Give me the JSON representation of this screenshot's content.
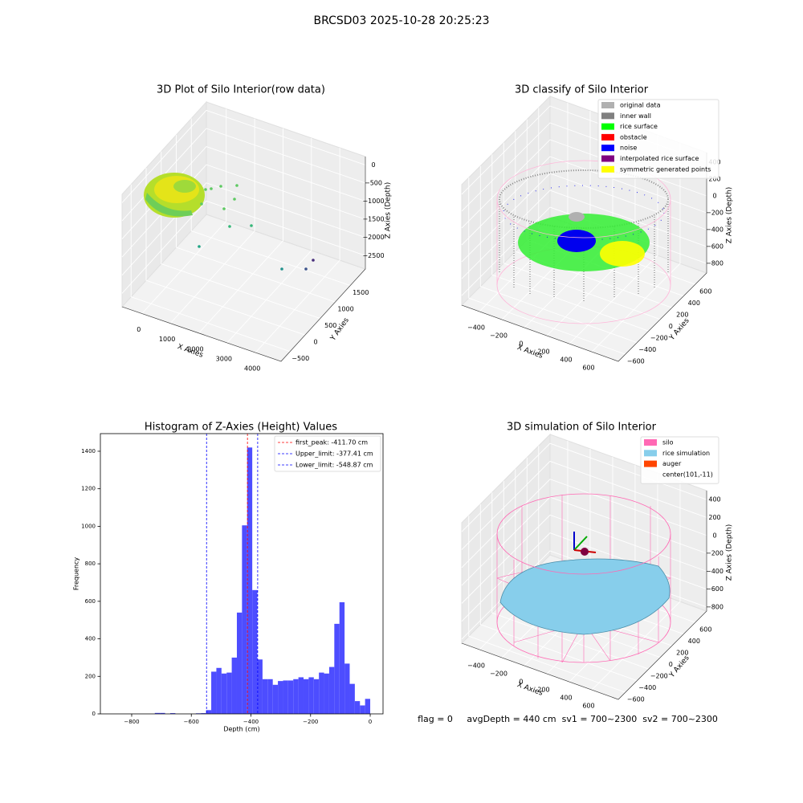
{
  "title": "BRCSD03 2025-10-28 20:25:23",
  "annotation": "flag = 0     avgDepth = 440 cm  sv1 = 700~2300  sv2 = 700~2300",
  "chart_data": [
    {
      "type": "scatter3d",
      "title": "3D Plot of Silo Interior(row data)",
      "xlabel": "X Axies",
      "ylabel": "Y Axies",
      "zlabel": "Z Axies (Depth)",
      "xlim": [
        -700,
        4900
      ],
      "ylim": [
        -800,
        2000
      ],
      "zlim": [
        -2870,
        230
      ],
      "xticks": [
        0,
        1000,
        2000,
        3000,
        4000
      ],
      "yticks": [
        {
          "value": -500,
          "label": "−500"
        },
        0,
        500,
        1000,
        1500
      ],
      "zticks": [
        0,
        {
          "value": -500,
          "label": "−500"
        },
        {
          "value": -1000,
          "label": "−1000"
        },
        {
          "value": -1500,
          "label": "−1500"
        },
        {
          "value": -2000,
          "label": "−2000"
        },
        {
          "value": -2500,
          "label": "−2500"
        }
      ],
      "grid": true
    },
    {
      "type": "scatter3d",
      "title": "3D classify of Silo Interior",
      "xlabel": "X Axies",
      "ylabel": "Y Axies",
      "zlabel": "Z Axies (Depth)",
      "xlim": [
        -557,
        836
      ],
      "ylim": [
        -721,
        796
      ],
      "zlim": [
        -914,
        514
      ],
      "xticks": [
        {
          "value": -400,
          "label": "−400"
        },
        {
          "value": -200,
          "label": "−200"
        },
        0,
        200,
        400,
        600
      ],
      "yticks": [
        {
          "value": -600,
          "label": "−600"
        },
        {
          "value": -400,
          "label": "−400"
        },
        {
          "value": -200,
          "label": "−200"
        },
        0,
        200,
        400,
        600
      ],
      "zticks": [
        {
          "value": -800,
          "label": "−800"
        },
        {
          "value": -600,
          "label": "−600"
        },
        {
          "value": -400,
          "label": "−400"
        },
        {
          "value": -200,
          "label": "−200"
        },
        0,
        200,
        400
      ],
      "grid": true,
      "legend_loc": "upper right",
      "legend": [
        {
          "name": "original data",
          "color": "#b0b0b0"
        },
        {
          "name": "inner wall",
          "color": "#808080"
        },
        {
          "name": "rice surface",
          "color": "#00ff00"
        },
        {
          "name": "obstacle",
          "color": "#ff0000"
        },
        {
          "name": "noise",
          "color": "#0000ff"
        },
        {
          "name": "interpolated rice surface",
          "color": "#800080"
        },
        {
          "name": "symmetric generated points",
          "color": "#ffff00"
        }
      ]
    },
    {
      "type": "histogram",
      "title": "Histogram of Z-Axies (Height) Values",
      "xlabel": "Depth (cm)",
      "ylabel": "Frequency",
      "color": "#4d4dff",
      "xlim": [
        -905,
        43
      ],
      "ylim": [
        0,
        1494
      ],
      "xticks": [
        {
          "value": -800,
          "label": "−800"
        },
        {
          "value": -600,
          "label": "−600"
        },
        {
          "value": -400,
          "label": "−400"
        },
        {
          "value": -200,
          "label": "−200"
        },
        0
      ],
      "yticks": [
        0,
        200,
        400,
        600,
        800,
        1000,
        1200,
        1400
      ],
      "bins": [
        -860,
        -842.8,
        -825.6,
        -808.4,
        -791.2,
        -774,
        -756.8,
        -739.6,
        -722.4,
        -705.2,
        -688,
        -670.8,
        -653.6,
        -636.4,
        -619.2,
        -602,
        -584.8,
        -567.6,
        -550.4,
        -533.2,
        -516,
        -498.8,
        -481.6,
        -464.4,
        -447.2,
        -430,
        -412.8,
        -395.6,
        -378.4,
        -361.2,
        -344,
        -326.8,
        -309.6,
        -292.4,
        -275.2,
        -258,
        -240.8,
        -223.6,
        -206.4,
        -189.2,
        -172,
        -154.8,
        -137.6,
        -120.4,
        -103.2,
        -86,
        -68.8,
        -51.6,
        -34.4,
        -17.2,
        0
      ],
      "values": [
        0,
        0,
        0,
        0,
        0,
        0,
        0,
        0,
        5,
        5,
        0,
        4,
        0,
        0,
        0,
        0,
        3,
        4,
        20,
        225,
        245,
        215,
        220,
        300,
        540,
        1005,
        1420,
        660,
        290,
        185,
        185,
        155,
        175,
        178,
        178,
        185,
        195,
        185,
        195,
        185,
        220,
        215,
        250,
        480,
        595,
        268,
        160,
        68,
        45,
        80
      ],
      "legend_loc": "upper right",
      "lines": [
        {
          "name": "first_peak: -411.70 cm",
          "value": -411.7,
          "color": "#ff0000"
        },
        {
          "name": "Upper_limit: -377.41 cm",
          "value": -377.41,
          "color": "#0000ff"
        },
        {
          "name": "Lower_limit: -548.87 cm",
          "value": -548.87,
          "color": "#0000ff"
        }
      ]
    },
    {
      "type": "surface3d",
      "title": "3D simulation of Silo Interior",
      "xlabel": "X Axies",
      "ylabel": "Y Axies",
      "zlabel": "Z Axies (Depth)",
      "xlim": [
        -557,
        836
      ],
      "ylim": [
        -721,
        796
      ],
      "zlim": [
        -845,
        500
      ],
      "xticks": [
        {
          "value": -400,
          "label": "−400"
        },
        {
          "value": -200,
          "label": "−200"
        },
        0,
        200,
        400,
        600
      ],
      "yticks": [
        {
          "value": -600,
          "label": "−600"
        },
        {
          "value": -400,
          "label": "−400"
        },
        {
          "value": -200,
          "label": "−200"
        },
        0,
        200,
        400,
        600
      ],
      "zticks": [
        {
          "value": -800,
          "label": "−800"
        },
        {
          "value": -600,
          "label": "−600"
        },
        {
          "value": -400,
          "label": "−400"
        },
        {
          "value": -200,
          "label": "−200"
        },
        0,
        200,
        400
      ],
      "grid": true,
      "legend_loc": "upper right",
      "legend": [
        {
          "name": "silo",
          "color": "#ff69b4"
        },
        {
          "name": "rice simulation",
          "color": "#87ceeb"
        },
        {
          "name": "auger",
          "color": "#ff4500"
        },
        {
          "name": "center(101,-11)"
        }
      ]
    }
  ]
}
